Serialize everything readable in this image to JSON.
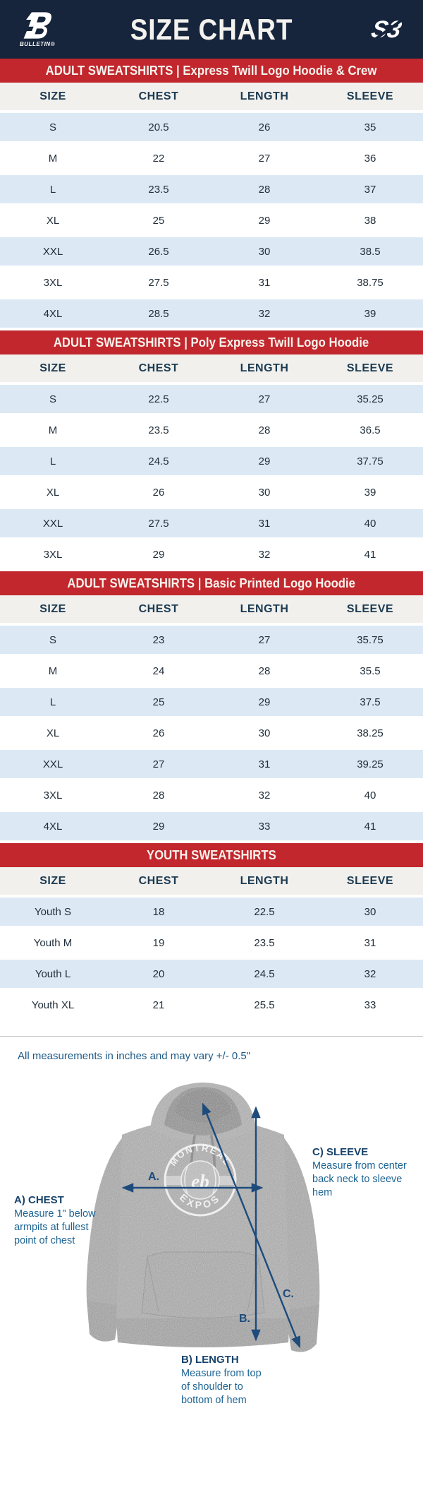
{
  "header": {
    "title": "SIZE CHART",
    "bulletin_logo_text": "BULLETIN®",
    "s3_logo_text": "S3"
  },
  "note": "All measurements in inches and may vary +/- 0.5\"",
  "diagram": {
    "marker_a": "A.",
    "marker_b": "B.",
    "marker_c": "C.",
    "chest_label": "A) CHEST",
    "chest_desc": "Measure 1\" below\narmpits at fullest\npoint of chest",
    "length_label": "B) LENGTH",
    "length_desc": "Measure from top\nof shoulder to\nbottom of hem",
    "sleeve_label": "C) SLEEVE",
    "sleeve_desc": "Measure from center\nback neck to sleeve hem",
    "hoodie_logo_top": "MONTRÉAL",
    "hoodie_logo_bottom": "EXPOS"
  },
  "colors": {
    "navy": "#16243c",
    "red": "#c1272d",
    "banner_text": "#f7f2ec",
    "thead_bg": "#f1f0ec",
    "row_blue": "#dce9f5",
    "row_white": "#ffffff",
    "head_text": "#1b3a52",
    "cell_text": "#222f3a",
    "note_text": "#1d5a85",
    "label_bold": "#17436b",
    "label_body": "#1d6493",
    "arrow": "#1d4b7c",
    "divider": "#c4c4c4"
  },
  "chart_data": [
    {
      "type": "table",
      "title": "ADULT SWEATSHIRTS | Express Twill Logo Hoodie & Crew",
      "columns": [
        "SIZE",
        "CHEST",
        "LENGTH",
        "SLEEVE"
      ],
      "rows": [
        [
          "S",
          20.5,
          26,
          35
        ],
        [
          "M",
          22,
          27,
          36
        ],
        [
          "L",
          23.5,
          28,
          37
        ],
        [
          "XL",
          25,
          29,
          38
        ],
        [
          "XXL",
          26.5,
          30,
          38.5
        ],
        [
          "3XL",
          27.5,
          31,
          38.75
        ],
        [
          "4XL",
          28.5,
          32,
          39
        ]
      ]
    },
    {
      "type": "table",
      "title": "ADULT SWEATSHIRTS | Poly Express Twill Logo Hoodie",
      "columns": [
        "SIZE",
        "CHEST",
        "LENGTH",
        "SLEEVE"
      ],
      "rows": [
        [
          "S",
          22.5,
          27,
          35.25
        ],
        [
          "M",
          23.5,
          28,
          36.5
        ],
        [
          "L",
          24.5,
          29,
          37.75
        ],
        [
          "XL",
          26,
          30,
          39
        ],
        [
          "XXL",
          27.5,
          31,
          40
        ],
        [
          "3XL",
          29,
          32,
          41
        ]
      ]
    },
    {
      "type": "table",
      "title": "ADULT SWEATSHIRTS | Basic Printed Logo Hoodie",
      "columns": [
        "SIZE",
        "CHEST",
        "LENGTH",
        "SLEEVE"
      ],
      "rows": [
        [
          "S",
          23,
          27,
          35.75
        ],
        [
          "M",
          24,
          28,
          35.5
        ],
        [
          "L",
          25,
          29,
          37.5
        ],
        [
          "XL",
          26,
          30,
          38.25
        ],
        [
          "XXL",
          27,
          31,
          39.25
        ],
        [
          "3XL",
          28,
          32,
          40
        ],
        [
          "4XL",
          29,
          33,
          41
        ]
      ]
    },
    {
      "type": "table",
      "title": "YOUTH SWEATSHIRTS",
      "columns": [
        "SIZE",
        "CHEST",
        "LENGTH",
        "SLEEVE"
      ],
      "rows": [
        [
          "Youth S",
          18,
          22.5,
          30
        ],
        [
          "Youth M",
          19,
          23.5,
          31
        ],
        [
          "Youth L",
          20,
          24.5,
          32
        ],
        [
          "Youth XL",
          21,
          25.5,
          33
        ]
      ]
    }
  ]
}
